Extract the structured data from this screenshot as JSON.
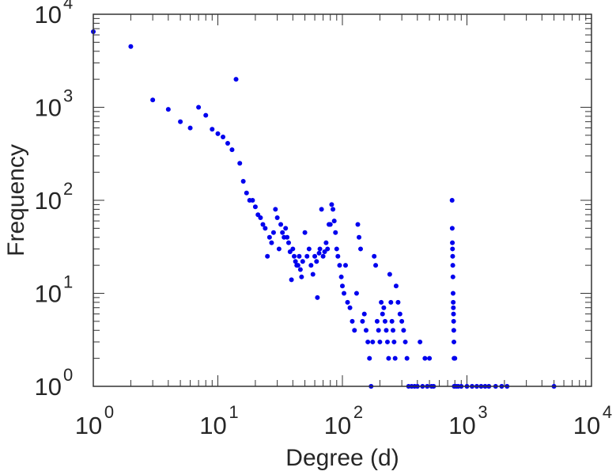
{
  "chart_data": {
    "type": "scatter",
    "xlabel": "Degree (d)",
    "ylabel": "Frequency",
    "x_scale": "log",
    "y_scale": "log",
    "xlim": [
      1,
      10000
    ],
    "ylim": [
      1,
      10000
    ],
    "x_ticks": [
      {
        "base": "10",
        "exp": "0",
        "value": 1
      },
      {
        "base": "10",
        "exp": "1",
        "value": 10
      },
      {
        "base": "10",
        "exp": "2",
        "value": 100
      },
      {
        "base": "10",
        "exp": "3",
        "value": 1000
      },
      {
        "base": "10",
        "exp": "4",
        "value": 10000
      }
    ],
    "y_ticks": [
      {
        "base": "10",
        "exp": "0",
        "value": 1
      },
      {
        "base": "10",
        "exp": "1",
        "value": 10
      },
      {
        "base": "10",
        "exp": "2",
        "value": 100
      },
      {
        "base": "10",
        "exp": "3",
        "value": 1000
      },
      {
        "base": "10",
        "exp": "4",
        "value": 10000
      }
    ],
    "grid": false,
    "marker_color": "#0000ee",
    "series": [
      {
        "points": [
          [
            1,
            6500
          ],
          [
            2,
            4500
          ],
          [
            3,
            1200
          ],
          [
            4,
            950
          ],
          [
            5,
            700
          ],
          [
            6,
            600
          ],
          [
            7,
            1000
          ],
          [
            8,
            820
          ],
          [
            9,
            580
          ],
          [
            10,
            520
          ],
          [
            11,
            480
          ],
          [
            12,
            410
          ],
          [
            13,
            350
          ],
          [
            14,
            2000
          ],
          [
            15,
            250
          ],
          [
            16,
            160
          ],
          [
            17,
            120
          ],
          [
            18,
            100
          ],
          [
            19,
            100
          ],
          [
            20,
            85
          ],
          [
            21,
            70
          ],
          [
            22,
            65
          ],
          [
            23,
            55
          ],
          [
            24,
            50
          ],
          [
            25,
            25
          ],
          [
            26,
            40
          ],
          [
            27,
            35
          ],
          [
            28,
            45
          ],
          [
            29,
            80
          ],
          [
            30,
            65
          ],
          [
            31,
            30
          ],
          [
            32,
            55
          ],
          [
            33,
            45
          ],
          [
            34,
            40
          ],
          [
            35,
            50
          ],
          [
            36,
            40
          ],
          [
            37,
            35
          ],
          [
            38,
            28
          ],
          [
            39,
            14
          ],
          [
            40,
            30
          ],
          [
            41,
            25
          ],
          [
            42,
            22
          ],
          [
            43,
            20
          ],
          [
            44,
            20
          ],
          [
            45,
            25
          ],
          [
            46,
            18
          ],
          [
            47,
            15
          ],
          [
            48,
            22
          ],
          [
            50,
            45
          ],
          [
            52,
            25
          ],
          [
            54,
            30
          ],
          [
            56,
            20
          ],
          [
            58,
            16
          ],
          [
            60,
            25
          ],
          [
            62,
            22
          ],
          [
            63,
            9
          ],
          [
            65,
            27
          ],
          [
            66,
            30
          ],
          [
            68,
            80
          ],
          [
            70,
            25
          ],
          [
            72,
            28
          ],
          [
            74,
            35
          ],
          [
            76,
            30
          ],
          [
            78,
            55
          ],
          [
            80,
            55
          ],
          [
            82,
            90
          ],
          [
            84,
            80
          ],
          [
            86,
            60
          ],
          [
            88,
            45
          ],
          [
            90,
            30
          ],
          [
            92,
            25
          ],
          [
            95,
            20
          ],
          [
            98,
            15
          ],
          [
            100,
            12
          ],
          [
            103,
            10
          ],
          [
            106,
            20
          ],
          [
            110,
            8
          ],
          [
            115,
            7
          ],
          [
            120,
            5
          ],
          [
            125,
            4
          ],
          [
            130,
            10
          ],
          [
            133,
            55
          ],
          [
            136,
            40
          ],
          [
            140,
            30
          ],
          [
            145,
            5
          ],
          [
            150,
            6
          ],
          [
            155,
            4
          ],
          [
            160,
            3
          ],
          [
            165,
            2
          ],
          [
            170,
            1
          ],
          [
            175,
            3
          ],
          [
            180,
            25
          ],
          [
            185,
            20
          ],
          [
            190,
            5
          ],
          [
            195,
            4
          ],
          [
            200,
            3
          ],
          [
            205,
            8
          ],
          [
            210,
            6
          ],
          [
            215,
            7
          ],
          [
            220,
            5
          ],
          [
            225,
            4
          ],
          [
            230,
            3
          ],
          [
            235,
            2
          ],
          [
            240,
            16
          ],
          [
            245,
            8
          ],
          [
            250,
            5
          ],
          [
            255,
            4
          ],
          [
            260,
            3
          ],
          [
            265,
            2
          ],
          [
            270,
            12
          ],
          [
            280,
            8
          ],
          [
            290,
            6
          ],
          [
            300,
            5
          ],
          [
            310,
            4
          ],
          [
            320,
            3
          ],
          [
            330,
            2
          ],
          [
            340,
            1
          ],
          [
            360,
            1
          ],
          [
            380,
            1
          ],
          [
            400,
            1
          ],
          [
            420,
            3
          ],
          [
            440,
            1
          ],
          [
            460,
            2
          ],
          [
            480,
            1
          ],
          [
            500,
            2
          ],
          [
            520,
            1
          ],
          [
            540,
            1
          ],
          [
            760,
            100
          ],
          [
            762,
            50
          ],
          [
            764,
            35
          ],
          [
            766,
            30
          ],
          [
            768,
            25
          ],
          [
            770,
            20
          ],
          [
            772,
            15
          ],
          [
            774,
            10
          ],
          [
            776,
            8
          ],
          [
            778,
            7
          ],
          [
            780,
            6
          ],
          [
            782,
            5
          ],
          [
            784,
            4
          ],
          [
            786,
            3
          ],
          [
            788,
            2
          ],
          [
            790,
            1
          ],
          [
            800,
            2
          ],
          [
            820,
            1
          ],
          [
            850,
            1
          ],
          [
            900,
            1
          ],
          [
            1000,
            1
          ],
          [
            1100,
            1
          ],
          [
            1200,
            1
          ],
          [
            1300,
            1
          ],
          [
            1400,
            1
          ],
          [
            1500,
            1
          ],
          [
            1700,
            1
          ],
          [
            1900,
            1
          ],
          [
            2100,
            1
          ],
          [
            5000,
            1
          ]
        ]
      }
    ]
  }
}
